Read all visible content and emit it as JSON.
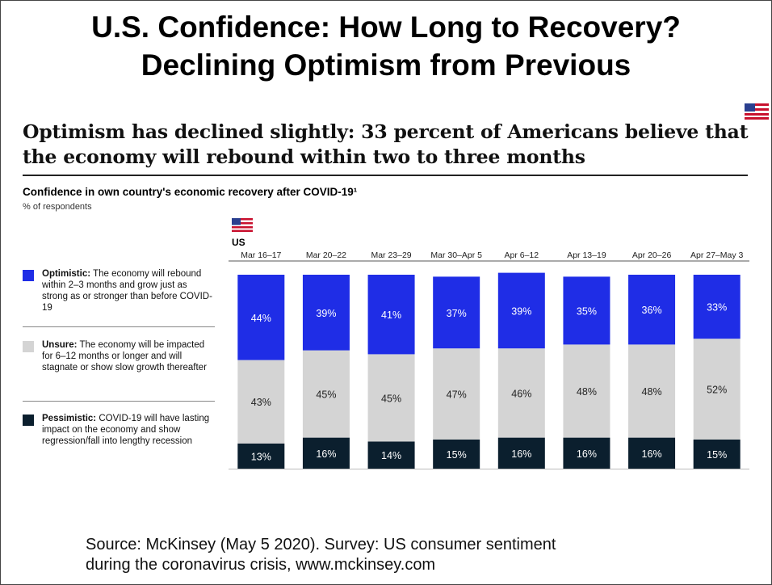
{
  "slide": {
    "title_line1": "U.S. Confidence: How Long to Recovery?",
    "title_line2": "Declining Optimism from Previous",
    "headline": "Optimism has declined slightly: 33 percent of Americans believe that the economy will rebound within two to three months",
    "source_line1": "Source: McKinsey (May 5 2020). Survey: US consumer sentiment",
    "source_line2": "during the coronavirus crisis, www.mckinsey.com"
  },
  "legend": {
    "optimistic": {
      "label": "Optimistic:",
      "desc": "The economy will rebound within 2–3 months and grow just as strong as or stronger than before COVID-19"
    },
    "unsure": {
      "label": "Unsure:",
      "desc": "The economy will be impacted for 6–12 months or longer and will stagnate or show slow growth thereafter"
    },
    "pessimistic": {
      "label": "Pessimistic:",
      "desc": "COVID-19 will have lasting impact on the economy and show regression/fall into lengthy recession"
    }
  },
  "colors": {
    "optimistic": "#1f2de6",
    "unsure": "#d4d4d4",
    "pessimistic": "#0b1f2e",
    "flag_red": "#c8102e",
    "flag_blue": "#2a3f8f"
  },
  "chart_data": {
    "type": "bar",
    "stacked": true,
    "title": "Confidence in own country's economic recovery after COVID-19¹",
    "unit": "% of respondents",
    "country_label": "US",
    "categories": [
      "Mar 16–17",
      "Mar 20–22",
      "Mar 23–29",
      "Mar 30–Apr 5",
      "Apr 6–12",
      "Apr 13–19",
      "Apr 20–26",
      "Apr 27–May 3"
    ],
    "series": [
      {
        "name": "Pessimistic",
        "values": [
          13,
          16,
          14,
          15,
          16,
          16,
          16,
          15
        ]
      },
      {
        "name": "Unsure",
        "values": [
          43,
          45,
          45,
          47,
          46,
          48,
          48,
          52
        ]
      },
      {
        "name": "Optimistic",
        "values": [
          44,
          39,
          41,
          37,
          39,
          35,
          36,
          33
        ]
      }
    ],
    "value_suffix": "%",
    "ylim": [
      0,
      100
    ],
    "grid": false
  }
}
